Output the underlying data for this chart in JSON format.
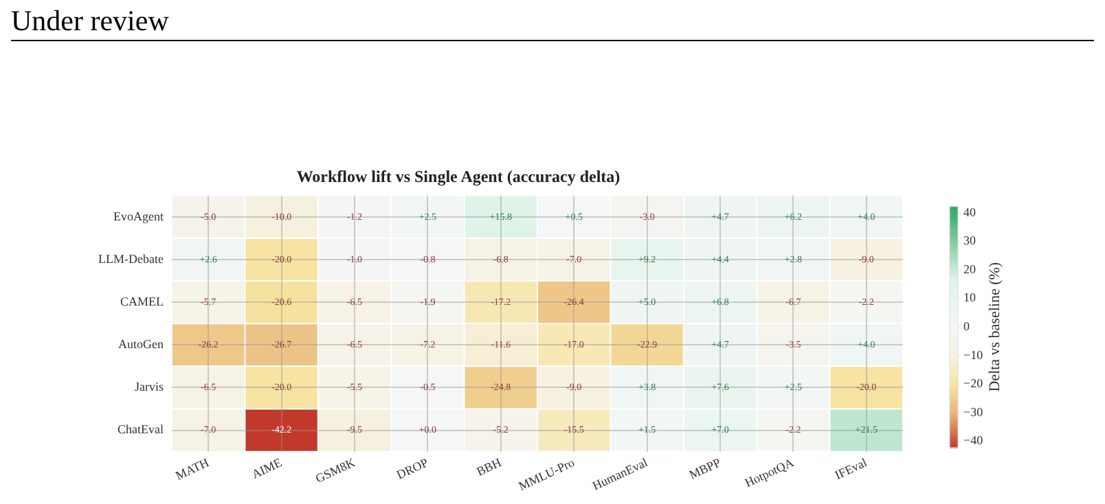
{
  "chart_data": {
    "type": "heatmap",
    "title": "Workflow lift vs Single Agent (accuracy delta)",
    "annotations": [
      "Under review"
    ],
    "clabel": "Delta vs baseline (%)",
    "categories": [
      "MATH",
      "AIME",
      "GSM8K",
      "DROP",
      "BBH",
      "MMLU-Pro",
      "HumanEval",
      "MBPP",
      "HotpotQA",
      "IFEval"
    ],
    "y_categories": [
      "EvoAgent",
      "LLM-Debate",
      "CAMEL",
      "AutoGen",
      "Jarvis",
      "ChatEval"
    ],
    "cells": [
      [
        -5.0,
        -10.0,
        -1.2,
        2.5,
        15.8,
        0.5,
        -3.0,
        4.7,
        6.2,
        4.0
      ],
      [
        2.6,
        -20.0,
        -1.0,
        -0.8,
        -6.8,
        -7.0,
        9.2,
        4.4,
        2.8,
        -9.0
      ],
      [
        -5.7,
        -20.6,
        -6.5,
        -1.9,
        -17.2,
        -26.4,
        5.0,
        6.8,
        -6.7,
        -2.2
      ],
      [
        -26.2,
        -26.7,
        -6.5,
        -7.2,
        -11.6,
        -17.0,
        -22.9,
        4.7,
        -3.5,
        4.0
      ],
      [
        -6.5,
        -20.0,
        -5.5,
        -0.5,
        -24.8,
        -9.0,
        3.8,
        7.6,
        2.5,
        -20.0
      ],
      [
        -7.0,
        -42.2,
        -9.5,
        0.0,
        -5.2,
        -15.5,
        1.5,
        7.0,
        -2.2,
        21.5
      ]
    ],
    "cell_labels": [
      [
        "-5.0",
        "-10.0",
        "-1.2",
        "+2.5",
        "+15.8",
        "+0.5",
        "-3.0",
        "+4.7",
        "+6.2",
        "+4.0"
      ],
      [
        "+2.6",
        "-20.0",
        "-1.0",
        "-0.8",
        "-6.8",
        "-7.0",
        "+9.2",
        "+4.4",
        "+2.8",
        "-9.0"
      ],
      [
        "-5.7",
        "-20.6",
        "-6.5",
        "-1.9",
        "-17.2",
        "-26.4",
        "+5.0",
        "+6.8",
        "-6.7",
        "-2.2"
      ],
      [
        "-26.2",
        "-26.7",
        "-6.5",
        "-7.2",
        "-11.6",
        "-17.0",
        "-22.9",
        "+4.7",
        "-3.5",
        "+4.0"
      ],
      [
        "-6.5",
        "-20.0",
        "-5.5",
        "-0.5",
        "-24.8",
        "-9.0",
        "+3.8",
        "+7.6",
        "+2.5",
        "-20.0"
      ],
      [
        "-7.0",
        "-42.2",
        "-9.5",
        "+0.0",
        "-5.2",
        "-15.5",
        "+1.5",
        "+7.0",
        "-2.2",
        "+21.5"
      ]
    ],
    "clim": [
      -42.2,
      42.2
    ],
    "cticks": [
      {
        "value": -40,
        "label": "−40"
      },
      {
        "value": -30,
        "label": "−30"
      },
      {
        "value": -20,
        "label": "−20"
      },
      {
        "value": -10,
        "label": "−10"
      },
      0,
      10,
      20,
      30,
      40
    ],
    "grid": true
  }
}
